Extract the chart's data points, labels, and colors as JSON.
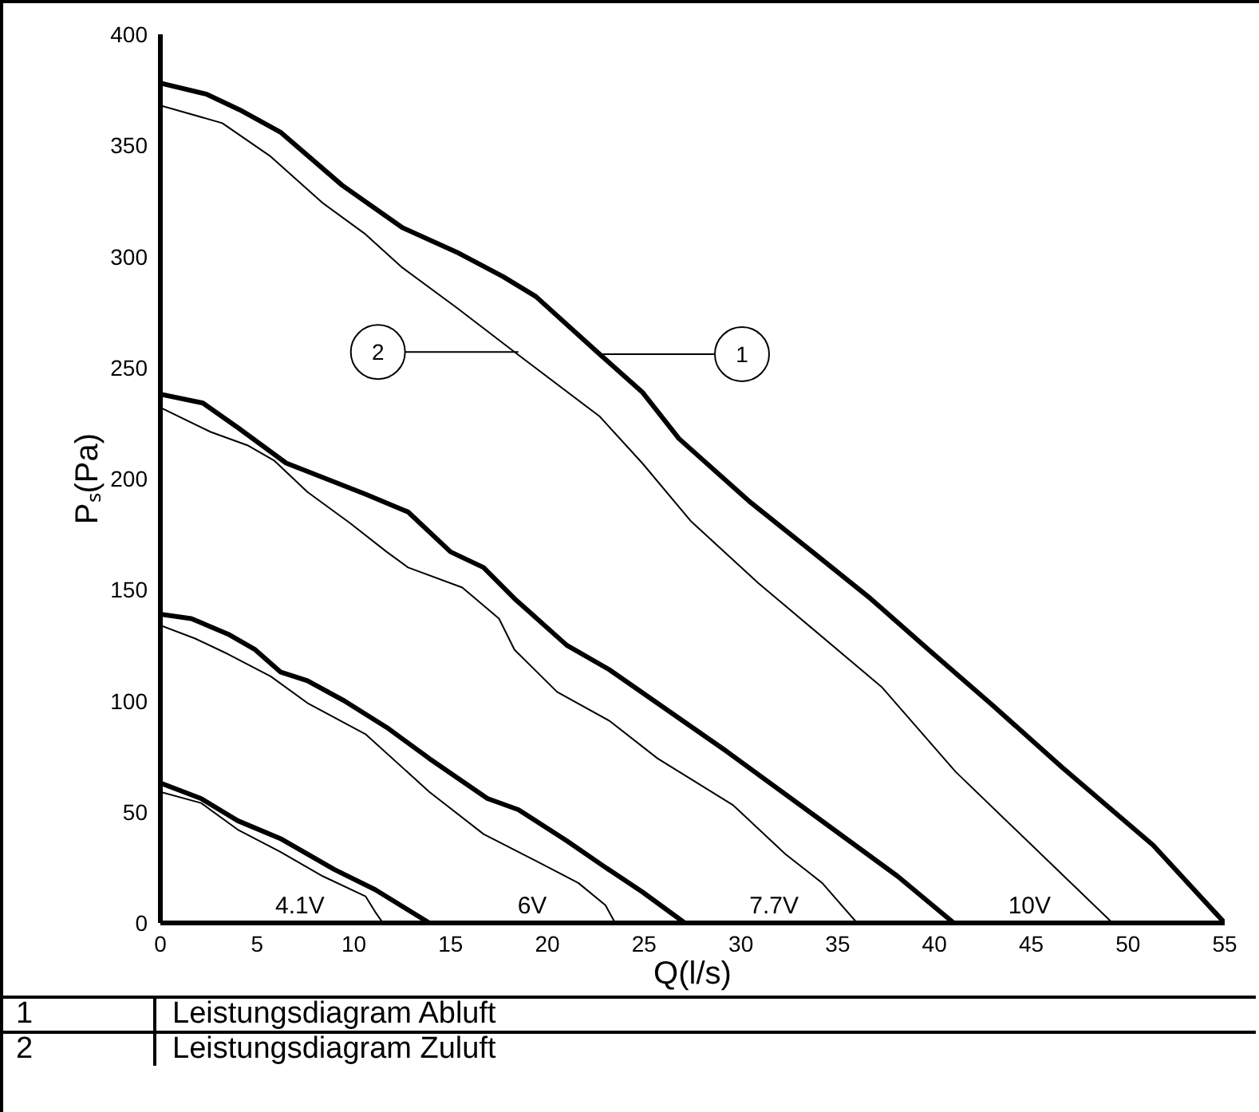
{
  "chart_data": {
    "type": "line",
    "xlabel": "Q(l/s)",
    "ylabel": "Pₛ(Pa)",
    "xlim": [
      0,
      55
    ],
    "ylim": [
      0,
      400
    ],
    "xticks": [
      0,
      5,
      10,
      15,
      20,
      25,
      30,
      35,
      40,
      45,
      50,
      55
    ],
    "yticks": [
      0,
      50,
      100,
      150,
      200,
      250,
      300,
      350,
      400
    ],
    "grid": false,
    "line_style": "solid",
    "marker": "none",
    "series": [
      {
        "color": "#000000",
        "x": [
          0,
          2.4,
          4.1,
          6.2,
          9.4,
          12.5,
          15.3,
          17.7,
          19.4,
          22.7,
          24.9,
          26.8,
          30.4,
          33.7,
          36.7,
          39.7,
          43,
          46.6,
          51.3,
          55
        ],
        "values": [
          378,
          373,
          366,
          356,
          332,
          313,
          302,
          291,
          282,
          256,
          239,
          218,
          190,
          167,
          146,
          123,
          98,
          70,
          35,
          0
        ]
      },
      {
        "color": "#000000",
        "x": [
          0,
          3.2,
          5.7,
          8.4,
          10.6,
          12.5,
          15.3,
          18.3,
          22.7,
          24.9,
          27.4,
          30.9,
          37.3,
          41.1,
          46.1,
          49.2
        ],
        "values": [
          368,
          360,
          345,
          324,
          310,
          295,
          277,
          257,
          228,
          207,
          181,
          153,
          106,
          68,
          26,
          0
        ]
      },
      {
        "color": "#000000",
        "x": [
          0,
          2.2,
          4,
          6.5,
          10.6,
          12.8,
          15,
          16.7,
          18.3,
          21,
          23.2,
          29.3,
          33.7,
          38.1,
          41
        ],
        "values": [
          238,
          234,
          223,
          207,
          193,
          185,
          167,
          160,
          146,
          125,
          114,
          77,
          49,
          21,
          0
        ]
      },
      {
        "color": "#000000",
        "x": [
          0,
          2.6,
          4.5,
          5.9,
          7.6,
          9.8,
          11.7,
          12.8,
          15.6,
          17.5,
          18.3,
          20.5,
          23.2,
          25.7,
          29.6,
          32.3,
          34.2,
          36
        ],
        "values": [
          232,
          221,
          215,
          208,
          194,
          180,
          167,
          160,
          151,
          137,
          123,
          104,
          91,
          74,
          53,
          31,
          18,
          0
        ]
      },
      {
        "color": "#000000",
        "x": [
          0,
          1.6,
          3.5,
          4.9,
          6.2,
          7.6,
          9.5,
          11.7,
          13.9,
          16.9,
          18.5,
          21,
          23,
          24.9,
          27.1
        ],
        "values": [
          139,
          137,
          130,
          123,
          113,
          109,
          100,
          88,
          74,
          56,
          51,
          37,
          25,
          14,
          0
        ]
      },
      {
        "color": "#000000",
        "x": [
          0,
          1.8,
          3.5,
          5.7,
          7.6,
          10.6,
          13.9,
          16.7,
          19.4,
          21.6,
          23,
          23.5
        ],
        "values": [
          134,
          128,
          121,
          111,
          99,
          85,
          59,
          40,
          28,
          18,
          8,
          0
        ]
      },
      {
        "color": "#000000",
        "x": [
          0,
          2.1,
          4,
          6.2,
          7.6,
          9,
          11.1,
          13.9
        ],
        "values": [
          63,
          56,
          46,
          38,
          31,
          24,
          15,
          0
        ]
      },
      {
        "color": "#000000",
        "x": [
          0,
          2.1,
          4,
          6.2,
          8.4,
          10.6,
          11.1,
          11.5
        ],
        "values": [
          59,
          54,
          42,
          32,
          21,
          12,
          5,
          0
        ]
      }
    ],
    "annotations": [
      "4.1V",
      "6V",
      "7.7V",
      "10V",
      {
        "text": "1",
        "x": 22.8,
        "y": 256
      },
      {
        "text": "2",
        "x": 18.5,
        "y": 257
      },
      "1 Leistungsdiagram Abluft",
      "2 Leistungsdiagram Zuluft"
    ]
  }
}
